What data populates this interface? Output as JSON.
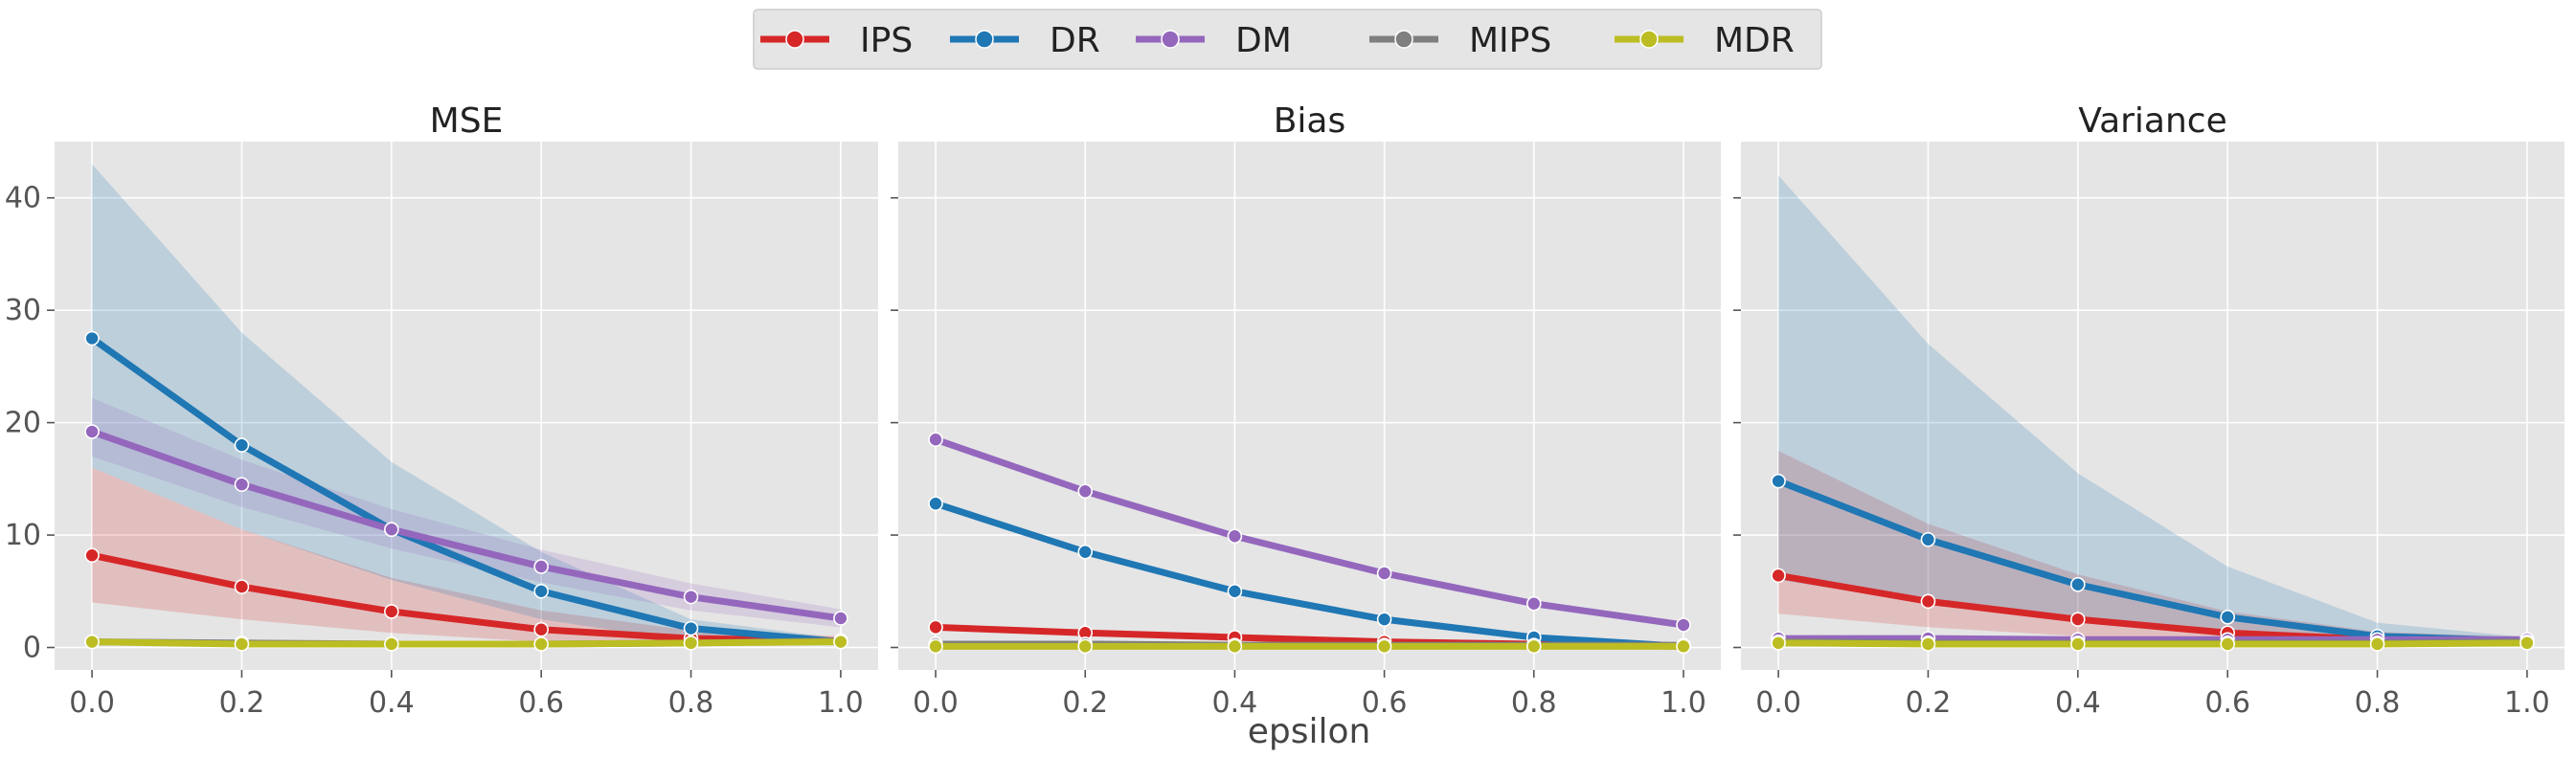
{
  "legend": {
    "entries": [
      {
        "name": "IPS",
        "color": "#d62728"
      },
      {
        "name": "DR",
        "color": "#1f77b4"
      },
      {
        "name": "DM",
        "color": "#9467bd"
      },
      {
        "name": "MIPS",
        "color": "#7f7f7f"
      },
      {
        "name": "MDR",
        "color": "#bcbd22"
      }
    ],
    "placement": "top-center"
  },
  "shared_xlabel": "epsilon",
  "chart_data": [
    {
      "type": "line",
      "title": "MSE",
      "xlabel": "",
      "ylabel": "",
      "x": [
        0.0,
        0.2,
        0.4,
        0.6,
        0.8,
        1.0
      ],
      "xticks": [
        0.0,
        0.2,
        0.4,
        0.6,
        0.8,
        1.0
      ],
      "xlim": [
        -0.05,
        1.05
      ],
      "yticks": [
        0,
        10,
        20,
        30,
        40
      ],
      "ylim": [
        -2,
        45
      ],
      "grid": true,
      "series": [
        {
          "name": "IPS",
          "color": "#d62728",
          "values": [
            8.2,
            5.4,
            3.2,
            1.6,
            0.8,
            0.6
          ],
          "ci_low": [
            4.0,
            2.5,
            1.3,
            0.5,
            0.3,
            0.2
          ],
          "ci_high": [
            16.0,
            10.5,
            6.2,
            3.3,
            1.5,
            1.0
          ]
        },
        {
          "name": "DR",
          "color": "#1f77b4",
          "values": [
            27.5,
            18.0,
            10.5,
            5.0,
            1.7,
            0.5
          ],
          "ci_low": [
            16.0,
            10.5,
            6.0,
            2.5,
            0.5,
            0.2
          ],
          "ci_high": [
            43.0,
            28.0,
            16.5,
            8.5,
            2.5,
            0.8
          ]
        },
        {
          "name": "DM",
          "color": "#9467bd",
          "values": [
            19.2,
            14.5,
            10.5,
            7.2,
            4.5,
            2.6
          ],
          "ci_low": [
            17.0,
            12.5,
            8.8,
            5.8,
            3.3,
            1.8
          ],
          "ci_high": [
            22.2,
            16.7,
            12.3,
            8.7,
            5.7,
            3.4
          ]
        },
        {
          "name": "MIPS",
          "color": "#7f7f7f",
          "values": [
            0.5,
            0.4,
            0.3,
            0.3,
            0.4,
            0.6
          ],
          "ci_low": [
            0.2,
            0.2,
            0.1,
            0.1,
            0.2,
            0.3
          ],
          "ci_high": [
            0.8,
            0.7,
            0.6,
            0.6,
            0.7,
            0.9
          ]
        },
        {
          "name": "MDR",
          "color": "#bcbd22",
          "values": [
            0.5,
            0.3,
            0.3,
            0.3,
            0.4,
            0.5
          ],
          "ci_low": [
            0.2,
            0.1,
            0.1,
            0.1,
            0.2,
            0.3
          ],
          "ci_high": [
            0.8,
            0.6,
            0.6,
            0.6,
            0.7,
            0.8
          ]
        }
      ]
    },
    {
      "type": "line",
      "title": "Bias",
      "xlabel": "",
      "ylabel": "",
      "x": [
        0.0,
        0.2,
        0.4,
        0.6,
        0.8,
        1.0
      ],
      "xticks": [
        0.0,
        0.2,
        0.4,
        0.6,
        0.8,
        1.0
      ],
      "xlim": [
        -0.05,
        1.05
      ],
      "yticks": [
        0,
        10,
        20,
        30,
        40
      ],
      "ylim": [
        -2,
        45
      ],
      "grid": true,
      "series": [
        {
          "name": "IPS",
          "color": "#d62728",
          "values": [
            1.8,
            1.3,
            0.9,
            0.5,
            0.3,
            0.1
          ]
        },
        {
          "name": "DR",
          "color": "#1f77b4",
          "values": [
            12.8,
            8.5,
            5.0,
            2.5,
            0.9,
            0.1
          ]
        },
        {
          "name": "DM",
          "color": "#9467bd",
          "values": [
            18.5,
            13.9,
            9.9,
            6.6,
            3.9,
            2.0
          ]
        },
        {
          "name": "MIPS",
          "color": "#7f7f7f",
          "values": [
            0.3,
            0.3,
            0.2,
            0.2,
            0.2,
            0.2
          ]
        },
        {
          "name": "MDR",
          "color": "#bcbd22",
          "values": [
            0.1,
            0.1,
            0.1,
            0.1,
            0.1,
            0.1
          ]
        }
      ]
    },
    {
      "type": "line",
      "title": "Variance",
      "xlabel": "",
      "ylabel": "",
      "x": [
        0.0,
        0.2,
        0.4,
        0.6,
        0.8,
        1.0
      ],
      "xticks": [
        0.0,
        0.2,
        0.4,
        0.6,
        0.8,
        1.0
      ],
      "xlim": [
        -0.05,
        1.05
      ],
      "yticks": [
        0,
        10,
        20,
        30,
        40
      ],
      "ylim": [
        -2,
        45
      ],
      "grid": true,
      "series": [
        {
          "name": "IPS",
          "color": "#d62728",
          "values": [
            6.4,
            4.1,
            2.5,
            1.3,
            0.7,
            0.6
          ],
          "ci_low": [
            3.0,
            1.8,
            1.0,
            0.5,
            0.3,
            0.3
          ],
          "ci_high": [
            17.5,
            11.0,
            6.5,
            3.2,
            1.4,
            0.9
          ]
        },
        {
          "name": "DR",
          "color": "#1f77b4",
          "values": [
            14.8,
            9.6,
            5.6,
            2.7,
            1.0,
            0.6
          ],
          "ci_low": [
            6.0,
            4.0,
            2.3,
            1.1,
            0.4,
            0.3
          ],
          "ci_high": [
            42.0,
            27.0,
            15.5,
            7.2,
            2.2,
            0.9
          ]
        },
        {
          "name": "DM",
          "color": "#9467bd",
          "values": [
            0.8,
            0.8,
            0.7,
            0.7,
            0.7,
            0.7
          ],
          "ci_low": [
            0.6,
            0.6,
            0.5,
            0.5,
            0.5,
            0.5
          ],
          "ci_high": [
            1.0,
            1.0,
            0.9,
            0.9,
            0.9,
            0.9
          ]
        },
        {
          "name": "MIPS",
          "color": "#7f7f7f",
          "values": [
            0.5,
            0.4,
            0.4,
            0.4,
            0.4,
            0.5
          ],
          "ci_low": [
            0.3,
            0.2,
            0.2,
            0.2,
            0.2,
            0.3
          ],
          "ci_high": [
            0.7,
            0.6,
            0.6,
            0.6,
            0.6,
            0.7
          ]
        },
        {
          "name": "MDR",
          "color": "#bcbd22",
          "values": [
            0.4,
            0.3,
            0.3,
            0.3,
            0.3,
            0.4
          ],
          "ci_low": [
            0.2,
            0.1,
            0.1,
            0.1,
            0.1,
            0.2
          ],
          "ci_high": [
            0.6,
            0.5,
            0.5,
            0.5,
            0.5,
            0.6
          ]
        }
      ]
    }
  ]
}
